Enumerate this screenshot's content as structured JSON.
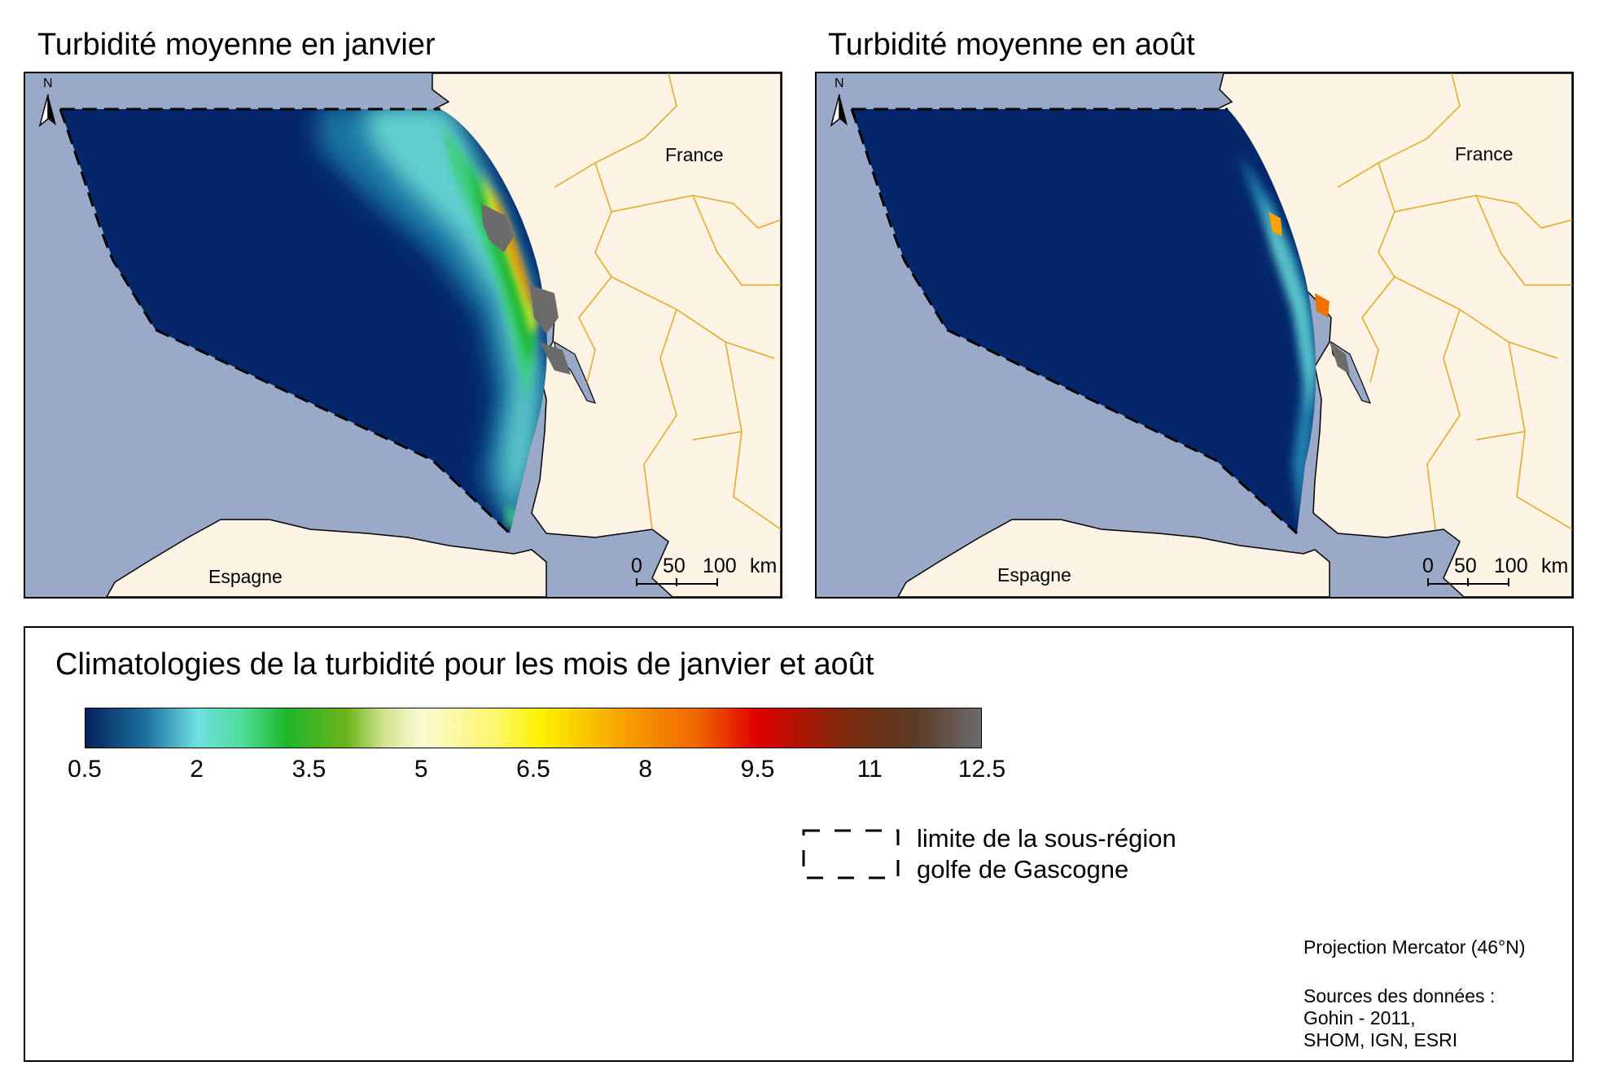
{
  "maps": [
    {
      "title": "Turbidité moyenne en janvier",
      "france_label": "France",
      "spain_label": "Espagne",
      "north_label": "N",
      "scale": {
        "labels": [
          "0",
          "50",
          "100"
        ],
        "unit": "km"
      }
    },
    {
      "title": "Turbidité moyenne en août",
      "france_label": "France",
      "spain_label": "Espagne",
      "north_label": "N",
      "scale": {
        "labels": [
          "0",
          "50",
          "100"
        ],
        "unit": "km"
      }
    }
  ],
  "legend": {
    "title": "Climatologies de la turbidité pour les mois de janvier et août",
    "min": 0.5,
    "max": 12.5,
    "ticks": [
      "0.5",
      "2",
      "3.5",
      "5",
      "6.5",
      "8",
      "9.5",
      "11",
      "12.5"
    ],
    "colorbar_stops": [
      {
        "value": 0.5,
        "color": "#04225e"
      },
      {
        "value": 1.3,
        "color": "#1d6f9e"
      },
      {
        "value": 2.0,
        "color": "#6ee0e0"
      },
      {
        "value": 2.6,
        "color": "#4fdc9a"
      },
      {
        "value": 3.2,
        "color": "#1fb529"
      },
      {
        "value": 4.0,
        "color": "#6cb41b"
      },
      {
        "value": 4.5,
        "color": "#d2e48e"
      },
      {
        "value": 5.0,
        "color": "#fbfbd3"
      },
      {
        "value": 6.0,
        "color": "#fcf66b"
      },
      {
        "value": 6.6,
        "color": "#fbf200"
      },
      {
        "value": 7.7,
        "color": "#f7a200"
      },
      {
        "value": 8.7,
        "color": "#f06600"
      },
      {
        "value": 9.5,
        "color": "#e00000"
      },
      {
        "value": 10.7,
        "color": "#7a2c0c"
      },
      {
        "value": 11.6,
        "color": "#5b3b24"
      },
      {
        "value": 12.5,
        "color": "#6b6b6b"
      }
    ],
    "boundary_label_line1": "limite de la sous-région",
    "boundary_label_line2": "golfe de Gascogne",
    "projection": "Projection Mercator (46°N)",
    "sources_line1": "Sources des données :",
    "sources_line2": "Gohin - 2011,",
    "sources_line3": "SHOM, IGN, ESRI"
  },
  "colors": {
    "sea": "#9aa9c7",
    "land": "#fef4e6",
    "basin": "#04266b",
    "border": "#e7a61c",
    "boundary": "#000000"
  }
}
